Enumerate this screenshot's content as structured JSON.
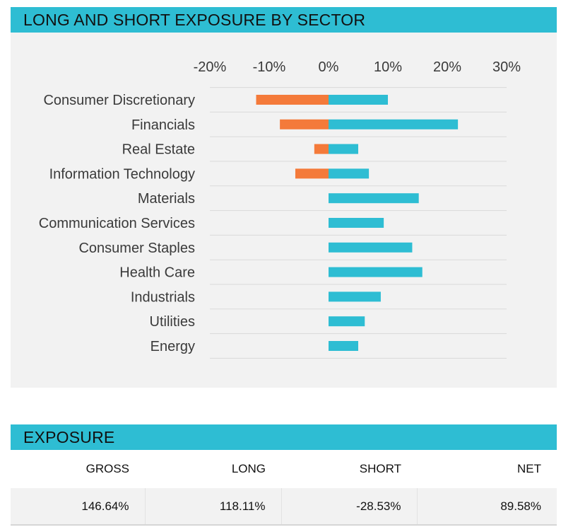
{
  "chart_section": {
    "title": "LONG AND SHORT EXPOSURE BY SECTOR"
  },
  "chart_data": {
    "type": "bar",
    "orientation": "horizontal",
    "stacked": "diverging",
    "title": "LONG AND SHORT EXPOSURE BY SECTOR",
    "categories": [
      "Consumer Discretionary",
      "Financials",
      "Real Estate",
      "Information Technology",
      "Materials",
      "Communication Services",
      "Consumer Staples",
      "Health Care",
      "Industrials",
      "Utilities",
      "Energy"
    ],
    "series": [
      {
        "values": [
          -12.2,
          -8.2,
          -2.4,
          -5.6,
          0,
          0,
          0,
          0,
          0,
          0,
          0
        ],
        "color": "#f47a3a"
      },
      {
        "values": [
          10.0,
          21.8,
          5.0,
          6.8,
          15.2,
          9.3,
          14.1,
          15.8,
          8.8,
          6.1,
          5.0
        ],
        "color": "#2ebdd3"
      }
    ],
    "xlim": [
      -20,
      30
    ],
    "xticks": [
      -20,
      -10,
      0,
      10,
      20,
      30
    ],
    "xtick_labels": [
      "-20%",
      "-10%",
      "0%",
      "10%",
      "20%",
      "30%"
    ],
    "xaxis_position": "top",
    "grid": true,
    "legend": "none"
  },
  "exposure": {
    "title": "EXPOSURE",
    "columns": [
      "GROSS",
      "LONG",
      "SHORT",
      "NET"
    ],
    "values": [
      "146.64%",
      "118.11%",
      "-28.53%",
      "89.58%"
    ]
  }
}
